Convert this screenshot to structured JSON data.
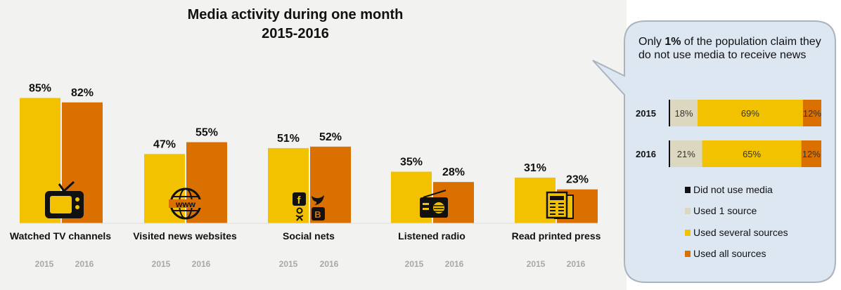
{
  "chart_data": [
    {
      "type": "bar",
      "title": "Media activity during one month",
      "subtitle": "2015-2016",
      "categories": [
        "Watched TV channels",
        "Visited news websites",
        "Social nets",
        "Listened radio",
        "Read printed press"
      ],
      "series": [
        {
          "name": "2015",
          "values": [
            85,
            47,
            51,
            35,
            31
          ],
          "color": "#f2c200"
        },
        {
          "name": "2016",
          "values": [
            82,
            55,
            52,
            28,
            23
          ],
          "color": "#d97000"
        }
      ],
      "value_suffix": "%",
      "year_labels": [
        "2015",
        "2016"
      ],
      "icons": [
        "tv-icon",
        "globe-www-icon",
        "social-networks-icon",
        "radio-icon",
        "newspaper-icon"
      ],
      "ylim": [
        0,
        100
      ]
    },
    {
      "type": "bar",
      "stacked": true,
      "orientation": "horizontal",
      "categories": [
        "2015",
        "2016"
      ],
      "series": [
        {
          "name": "Did not use media",
          "values": [
            1,
            1
          ],
          "color": "#111111"
        },
        {
          "name": "Used 1 source",
          "values": [
            18,
            21
          ],
          "color": "#dcd8c0"
        },
        {
          "name": "Used several sources",
          "values": [
            69,
            65
          ],
          "color": "#f2c200"
        },
        {
          "name": "Used all sources",
          "values": [
            12,
            12
          ],
          "color": "#d97000"
        }
      ],
      "value_suffix": "%"
    }
  ],
  "callout": {
    "prefix": "Only ",
    "highlight": "1%",
    "suffix": " of the population claim they do not use media to receive news"
  },
  "colors": {
    "panel_bg": "#f2f2f0",
    "callout_bg": "#dde7f2",
    "callout_border": "#a9b4bf"
  }
}
